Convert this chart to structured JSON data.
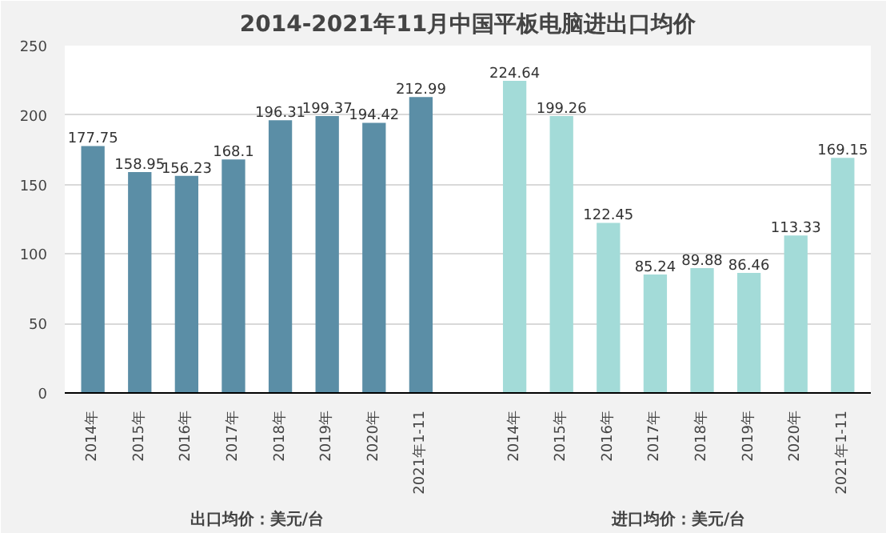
{
  "chart_data": {
    "type": "bar",
    "title": "2014-2021年11月中国平板电脑进出口均价",
    "categories": [
      "2014年",
      "2015年",
      "2016年",
      "2017年",
      "2018年",
      "2019年",
      "2020年",
      "2021年1-11",
      null,
      "2014年",
      "2015年",
      "2016年",
      "2017年",
      "2018年",
      "2019年",
      "2020年",
      "2021年1-11"
    ],
    "series": [
      {
        "color": "#5b8ea6",
        "values": [
          177.75,
          158.95,
          156.23,
          168.1,
          196.31,
          199.37,
          194.42,
          212.99,
          null,
          null,
          null,
          null,
          null,
          null,
          null,
          null,
          null
        ]
      },
      {
        "color": "#a3dbd8",
        "values": [
          null,
          null,
          null,
          null,
          null,
          null,
          null,
          null,
          null,
          224.64,
          199.26,
          122.45,
          85.24,
          89.88,
          86.46,
          113.33,
          169.15
        ]
      }
    ],
    "ylim": [
      0,
      250
    ],
    "yticks": [
      0,
      50,
      100,
      150,
      200,
      250
    ],
    "grid": "y",
    "data_labels": true,
    "annotations": [
      "出口均价：美元/台",
      "进口均价：美元/台"
    ]
  }
}
